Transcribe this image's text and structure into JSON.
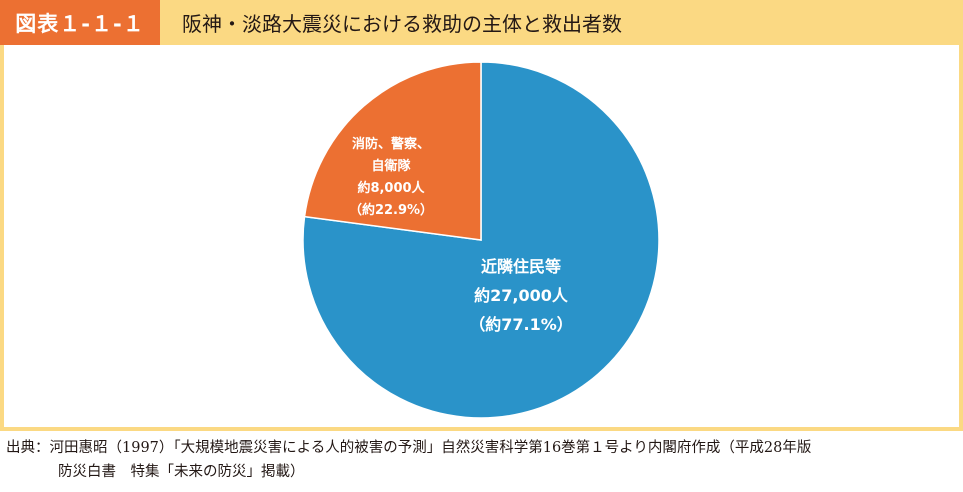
{
  "header": {
    "figure_number": "図表１-１-１",
    "title": "阪神・淡路大震災における救助の主体と救出者数"
  },
  "colors": {
    "accent": "#ec7032",
    "band": "#fbd983",
    "neighbors": "#2a93c9",
    "fire_police": "#ec7032"
  },
  "chart_data": {
    "type": "pie",
    "title": "阪神・淡路大震災における救助の主体と救出者数",
    "start_angle_deg": 0,
    "direction": "clockwise",
    "slices": [
      {
        "label_lines": [
          "近隣住民等",
          "約27,000人",
          "（約77.1%）"
        ],
        "count": 27000,
        "percent": 77.1,
        "color": "#2a93c9"
      },
      {
        "label_lines": [
          "消防、警察、",
          "自衛隊",
          "約8,000人",
          "（約22.9%）"
        ],
        "count": 8000,
        "percent": 22.9,
        "color": "#ec7032"
      }
    ]
  },
  "source": {
    "line1": "出典：河田惠昭（1997）「大規模地震災害による人的被害の予測」自然災害科学第16巻第１号より内閣府作成（平成28年版",
    "line2": "防災白書　特集「未来の防災」掲載）"
  }
}
